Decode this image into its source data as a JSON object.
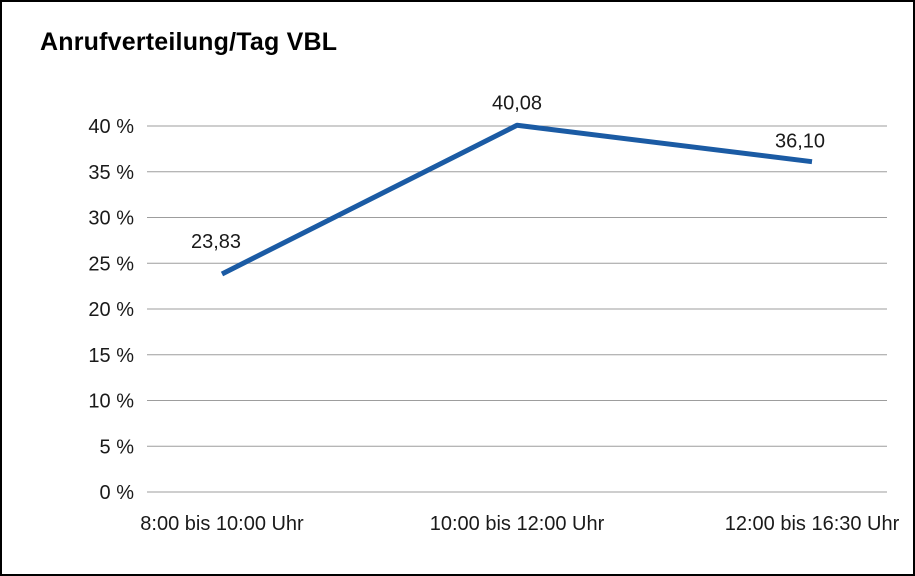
{
  "frame": {
    "background_color": "#ffffff",
    "border_color": "#000000"
  },
  "chart_data": {
    "type": "line",
    "title": "Anrufverteilung/Tag VBL",
    "categories": [
      "8:00 bis 10:00 Uhr",
      "10:00 bis 12:00 Uhr",
      "12:00 bis 16:30 Uhr"
    ],
    "values": [
      23.83,
      40.08,
      36.1
    ],
    "data_labels": [
      "23,83",
      "40,08",
      "36,10"
    ],
    "y_ticks": [
      "0 %",
      "5 %",
      "10 %",
      "15 %",
      "20 %",
      "25 %",
      "30 %",
      "35 %",
      "40 %"
    ],
    "ylim": [
      0,
      40
    ],
    "y_step": 5,
    "xlabel": "",
    "ylabel": "",
    "grid": true,
    "legend_position": "none",
    "line_color": "#1b5ba4",
    "grid_color": "#9d9d9d",
    "text_color": "#1a1a1a"
  }
}
